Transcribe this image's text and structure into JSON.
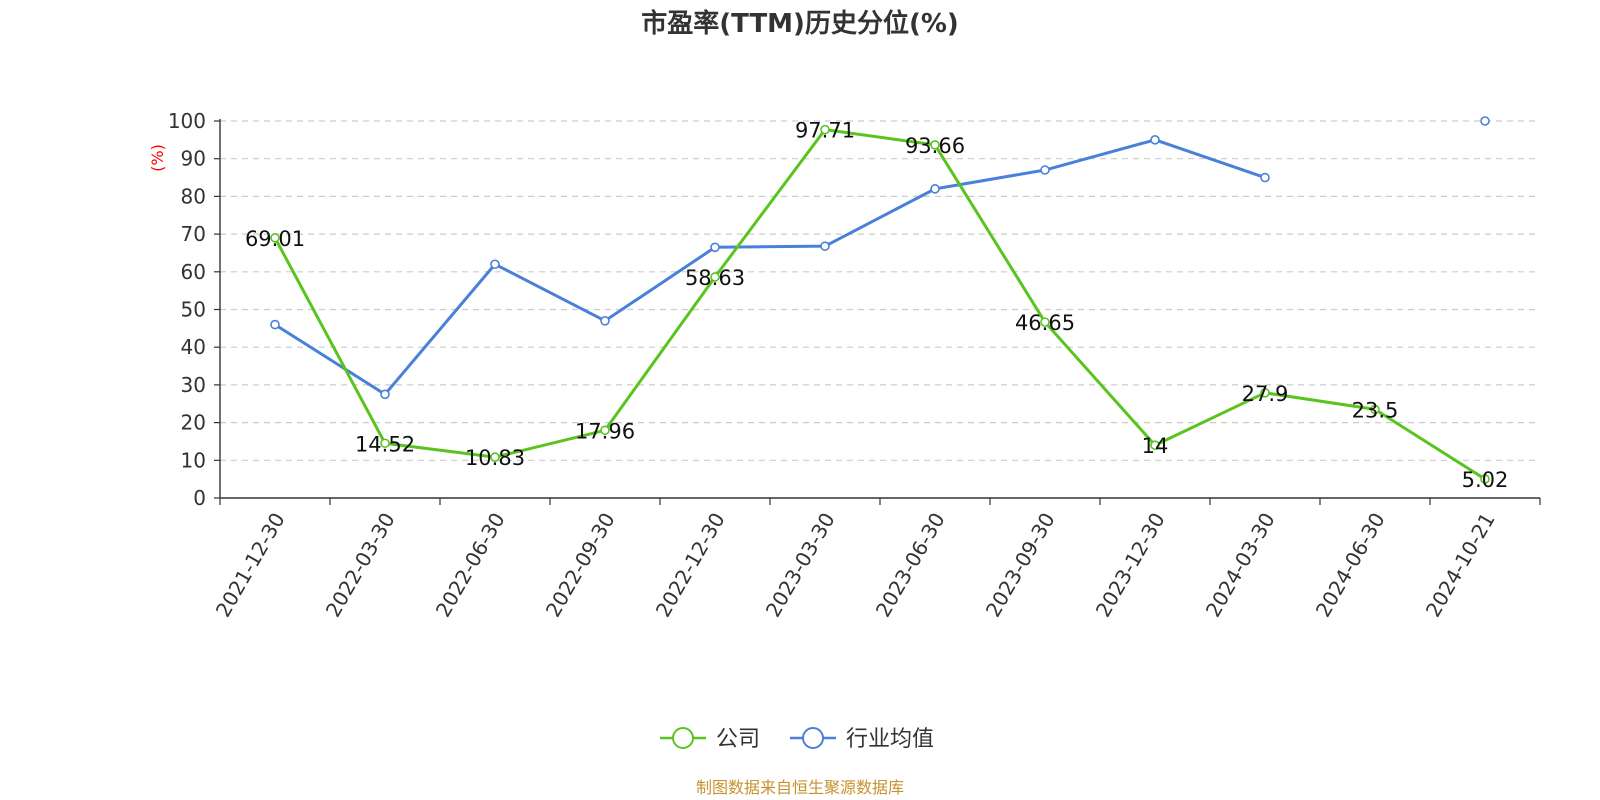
{
  "chart_data": {
    "type": "line",
    "title": "市盈率(TTM)历史分位(%)",
    "ylabel": "(%)",
    "categories": [
      "2021-12-30",
      "2022-03-30",
      "2022-06-30",
      "2022-09-30",
      "2022-12-30",
      "2023-03-30",
      "2023-06-30",
      "2023-09-30",
      "2023-12-30",
      "2024-03-30",
      "2024-06-30",
      "2024-10-21"
    ],
    "ylim": [
      0,
      100
    ],
    "yticks": [
      0,
      10,
      20,
      30,
      40,
      50,
      60,
      70,
      80,
      90,
      100
    ],
    "grid": true,
    "legend_position": "bottom",
    "series": [
      {
        "name": "公司",
        "color": "#5ac41f",
        "values": [
          69.01,
          14.52,
          10.83,
          17.96,
          58.63,
          97.71,
          93.66,
          46.65,
          14,
          27.9,
          23.5,
          5.02
        ],
        "show_labels": true
      },
      {
        "name": "行业均值",
        "color": "#4a80d9",
        "values": [
          46,
          27.5,
          62,
          47,
          66.5,
          66.8,
          82,
          87,
          95,
          85,
          null,
          100
        ],
        "show_labels": false
      }
    ],
    "source": "制图数据来自恒生聚源数据库",
    "source_color": "#c7922e",
    "unit_color": "#ff0000"
  }
}
